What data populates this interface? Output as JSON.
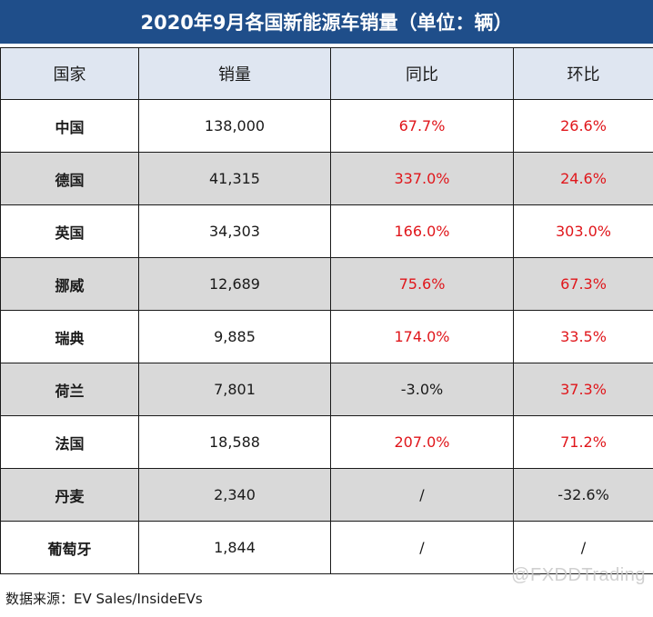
{
  "title": "2020年9月各国新能源车销量（单位：辆）",
  "headers": [
    "国家",
    "销量",
    "同比",
    "环比"
  ],
  "rows": [
    {
      "country": "中国",
      "sales": "138,000",
      "yoy": "67.7%",
      "yoy_color": "red",
      "mom": "26.6%",
      "mom_color": "red"
    },
    {
      "country": "德国",
      "sales": "41,315",
      "yoy": "337.0%",
      "yoy_color": "red",
      "mom": "24.6%",
      "mom_color": "red"
    },
    {
      "country": "英国",
      "sales": "34,303",
      "yoy": "166.0%",
      "yoy_color": "red",
      "mom": "303.0%",
      "mom_color": "red"
    },
    {
      "country": "挪威",
      "sales": "12,689",
      "yoy": "75.6%",
      "yoy_color": "red",
      "mom": "67.3%",
      "mom_color": "red"
    },
    {
      "country": "瑞典",
      "sales": "9,885",
      "yoy": "174.0%",
      "yoy_color": "red",
      "mom": "33.5%",
      "mom_color": "red"
    },
    {
      "country": "荷兰",
      "sales": "7,801",
      "yoy": "-3.0%",
      "yoy_color": "black",
      "mom": "37.3%",
      "mom_color": "red"
    },
    {
      "country": "法国",
      "sales": "18,588",
      "yoy": "207.0%",
      "yoy_color": "red",
      "mom": "71.2%",
      "mom_color": "red"
    },
    {
      "country": "丹麦",
      "sales": "2,340",
      "yoy": "/",
      "yoy_color": "black",
      "mom": "-32.6%",
      "mom_color": "black"
    },
    {
      "country": "葡萄牙",
      "sales": "1,844",
      "yoy": "/",
      "yoy_color": "black",
      "mom": "/",
      "mom_color": "black"
    }
  ],
  "source": "数据来源：EV Sales/InsideEVs",
  "watermark": "@FXDDTrading",
  "colors": {
    "title_bg": "#1f4e8a",
    "header_bg": "#dfe6f1",
    "alt_row_bg": "#d9d9d9",
    "positive_text": "#e0161b"
  }
}
